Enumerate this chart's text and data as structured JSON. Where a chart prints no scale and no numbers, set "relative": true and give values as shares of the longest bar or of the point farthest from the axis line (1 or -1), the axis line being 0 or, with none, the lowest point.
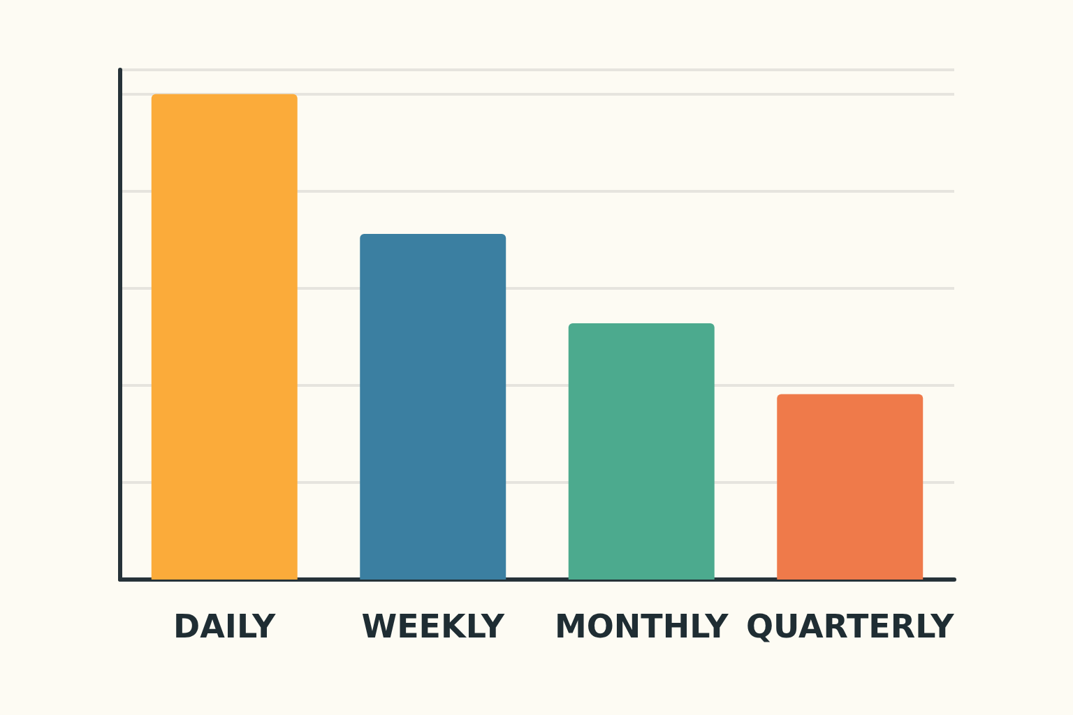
{
  "chart_data": {
    "type": "bar",
    "relative": true,
    "categories": [
      "DAILY",
      "WEEKLY",
      "MONTHLY",
      "QUARTERLY"
    ],
    "values": [
      1,
      0.712,
      0.528,
      0.382
    ],
    "colors": [
      "#fbab3a",
      "#3b7fa1",
      "#4caa8e",
      "#ef7a4a"
    ],
    "grid": "y"
  }
}
